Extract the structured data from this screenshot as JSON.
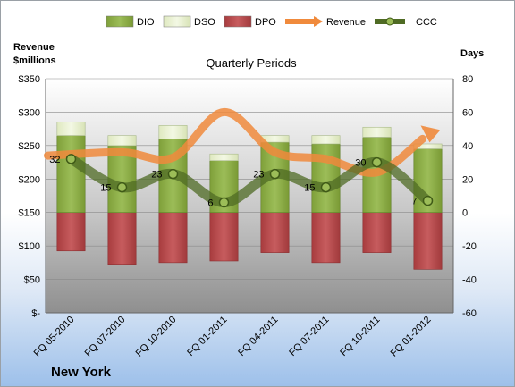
{
  "chart_data": {
    "type": "bar",
    "title": "Quarterly Periods",
    "location": "New York",
    "ylabel_left": [
      "Revenue",
      "$millions"
    ],
    "ylabel_right": "Days",
    "categories": [
      "FQ 05-2010",
      "FQ 07-2010",
      "FQ 10-2010",
      "FQ 01-2011",
      "FQ 04-2011",
      "FQ 07-2011",
      "FQ 10-2011",
      "FQ 01-2012"
    ],
    "left_axis": {
      "ylim": [
        0,
        350
      ],
      "ticks": [
        "$-",
        "$50",
        "$100",
        "$150",
        "$200",
        "$250",
        "$300",
        "$350"
      ],
      "tick_values": [
        0,
        50,
        100,
        150,
        200,
        250,
        300,
        350
      ]
    },
    "right_axis": {
      "ylim": [
        -60,
        80
      ],
      "ticks": [
        "-60",
        "-40",
        "-20",
        "0",
        "20",
        "40",
        "60",
        "80"
      ],
      "tick_values": [
        -60,
        -40,
        -20,
        0,
        20,
        40,
        60,
        80
      ]
    },
    "series": [
      {
        "name": "DIO",
        "axis": "right",
        "kind": "bar",
        "color": "#8fb04a",
        "values": [
          46,
          40,
          44,
          31,
          42,
          41,
          45,
          38
        ]
      },
      {
        "name": "DSO",
        "axis": "right",
        "kind": "bar-stacked-top",
        "color": "#e4edc9",
        "values": [
          8,
          6,
          8,
          4,
          4,
          5,
          6,
          3
        ]
      },
      {
        "name": "DPO",
        "axis": "right",
        "kind": "bar-negative",
        "color": "#b84a4c",
        "values": [
          -23,
          -31,
          -30,
          -29,
          -24,
          -30,
          -24,
          -34
        ]
      },
      {
        "name": "Revenue",
        "axis": "left",
        "kind": "line",
        "color": "#f08a3c",
        "values": [
          235,
          240,
          232,
          300,
          240,
          230,
          210,
          268
        ]
      },
      {
        "name": "CCC",
        "axis": "right",
        "kind": "line",
        "color": "#5c7a2e",
        "values": [
          32,
          15,
          23,
          6,
          23,
          15,
          30,
          7
        ],
        "labels": [
          "32",
          "15",
          "23",
          "6",
          "23",
          "15",
          "30",
          "7"
        ]
      }
    ],
    "legend": [
      "DIO",
      "DSO",
      "DPO",
      "Revenue",
      "CCC"
    ],
    "legend_position": "top",
    "plot_area_color": "#a8a8a8"
  }
}
